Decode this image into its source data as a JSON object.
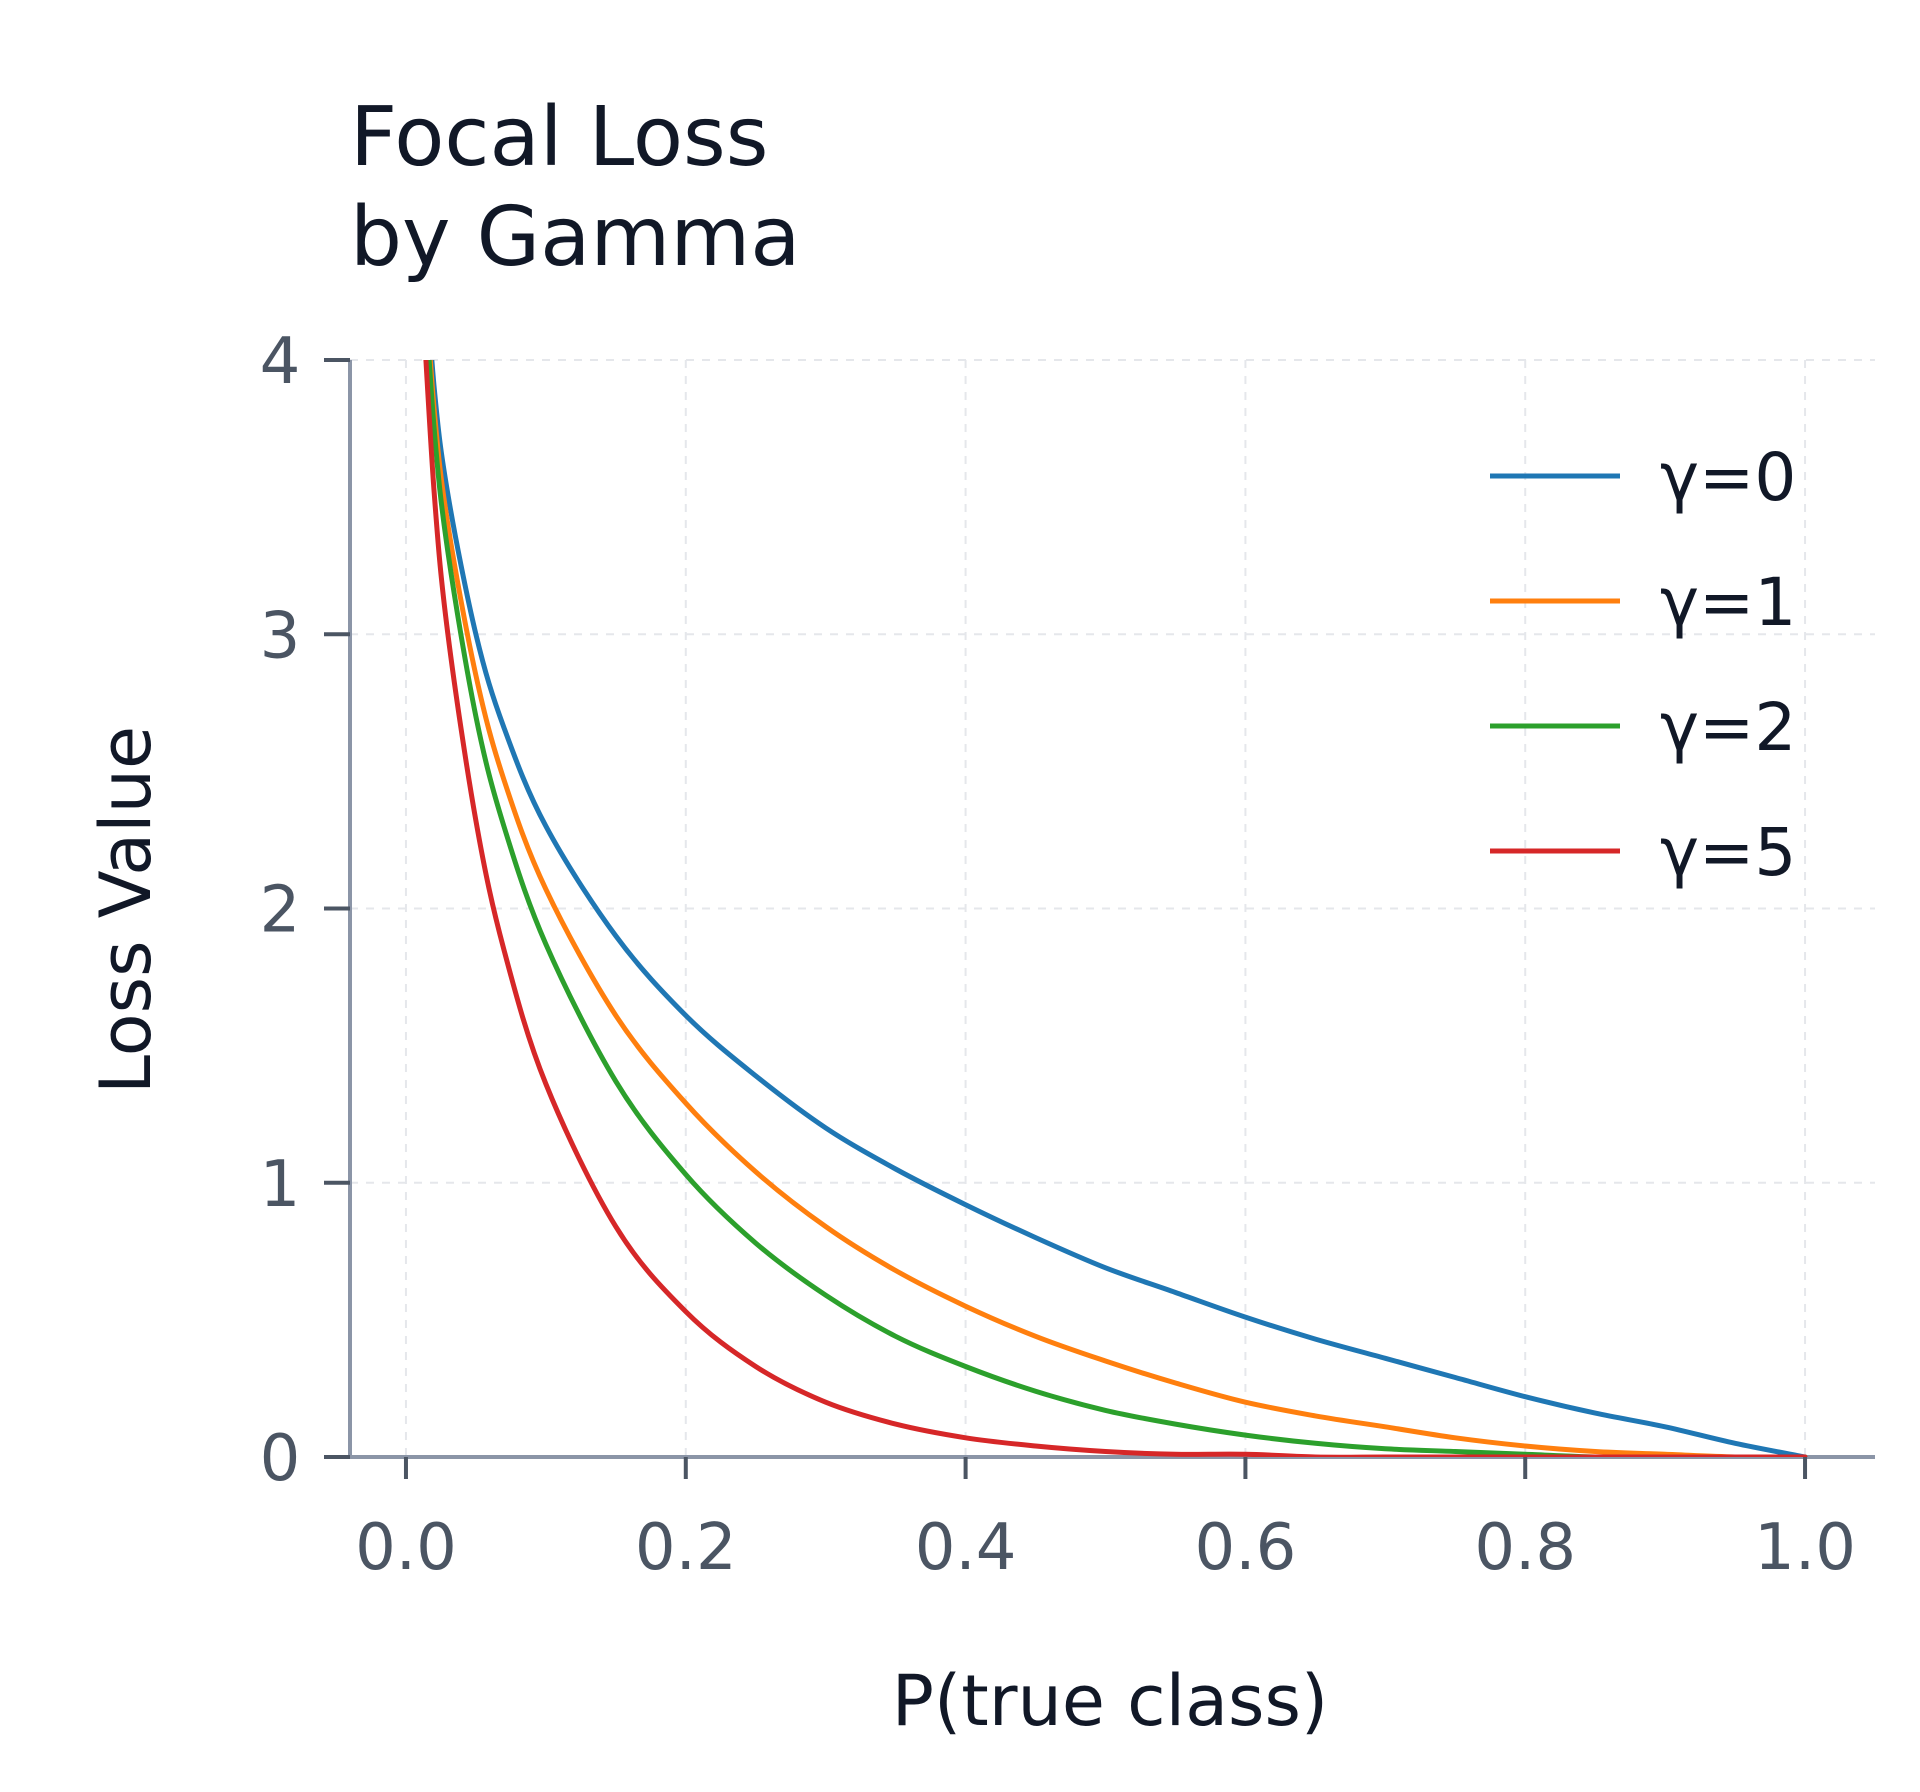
{
  "chart_data": {
    "type": "line",
    "title_lines": [
      "Focal Loss",
      "by Gamma"
    ],
    "xlabel": "P(true class)",
    "ylabel": "Loss Value",
    "xlim": [
      -0.04,
      1.05
    ],
    "ylim": [
      0,
      4
    ],
    "x_ticks": [
      0.0,
      0.2,
      0.4,
      0.6,
      0.8,
      1.0
    ],
    "x_tick_labels": [
      "0.0",
      "0.2",
      "0.4",
      "0.6",
      "0.8",
      "1.0"
    ],
    "y_ticks": [
      0,
      1,
      2,
      3,
      4
    ],
    "y_tick_labels": [
      "0",
      "1",
      "2",
      "3",
      "4"
    ],
    "grid": true,
    "legend_position": "top-right",
    "x": [
      0.01,
      0.02,
      0.03,
      0.05,
      0.07,
      0.1,
      0.15,
      0.2,
      0.25,
      0.3,
      0.35,
      0.4,
      0.45,
      0.5,
      0.55,
      0.6,
      0.65,
      0.7,
      0.75,
      0.8,
      0.85,
      0.9,
      0.95,
      1.0
    ],
    "series": [
      {
        "name": "γ=0",
        "color": "#1f77b4",
        "values": [
          4.61,
          3.91,
          3.51,
          3.0,
          2.66,
          2.3,
          1.9,
          1.61,
          1.39,
          1.2,
          1.05,
          0.92,
          0.8,
          0.69,
          0.6,
          0.51,
          0.43,
          0.36,
          0.29,
          0.22,
          0.16,
          0.11,
          0.05,
          0.0
        ]
      },
      {
        "name": "γ=1",
        "color": "#ff7f0e",
        "values": [
          4.56,
          3.83,
          3.4,
          2.85,
          2.47,
          2.07,
          1.61,
          1.29,
          1.04,
          0.84,
          0.68,
          0.55,
          0.44,
          0.35,
          0.27,
          0.2,
          0.15,
          0.11,
          0.07,
          0.04,
          0.02,
          0.01,
          0.0,
          0.0
        ]
      },
      {
        "name": "γ=2",
        "color": "#2ca02c",
        "values": [
          4.52,
          3.76,
          3.3,
          2.7,
          2.3,
          1.87,
          1.37,
          1.03,
          0.78,
          0.59,
          0.44,
          0.33,
          0.24,
          0.17,
          0.12,
          0.08,
          0.05,
          0.03,
          0.02,
          0.01,
          0.0,
          0.0,
          0.0,
          0.0
        ]
      },
      {
        "name": "γ=5",
        "color": "#d62728",
        "values": [
          4.38,
          3.53,
          3.0,
          2.32,
          1.85,
          1.36,
          0.84,
          0.53,
          0.33,
          0.2,
          0.12,
          0.07,
          0.04,
          0.02,
          0.01,
          0.01,
          0.0,
          0.0,
          0.0,
          0.0,
          0.0,
          0.0,
          0.0,
          0.0
        ]
      }
    ]
  }
}
